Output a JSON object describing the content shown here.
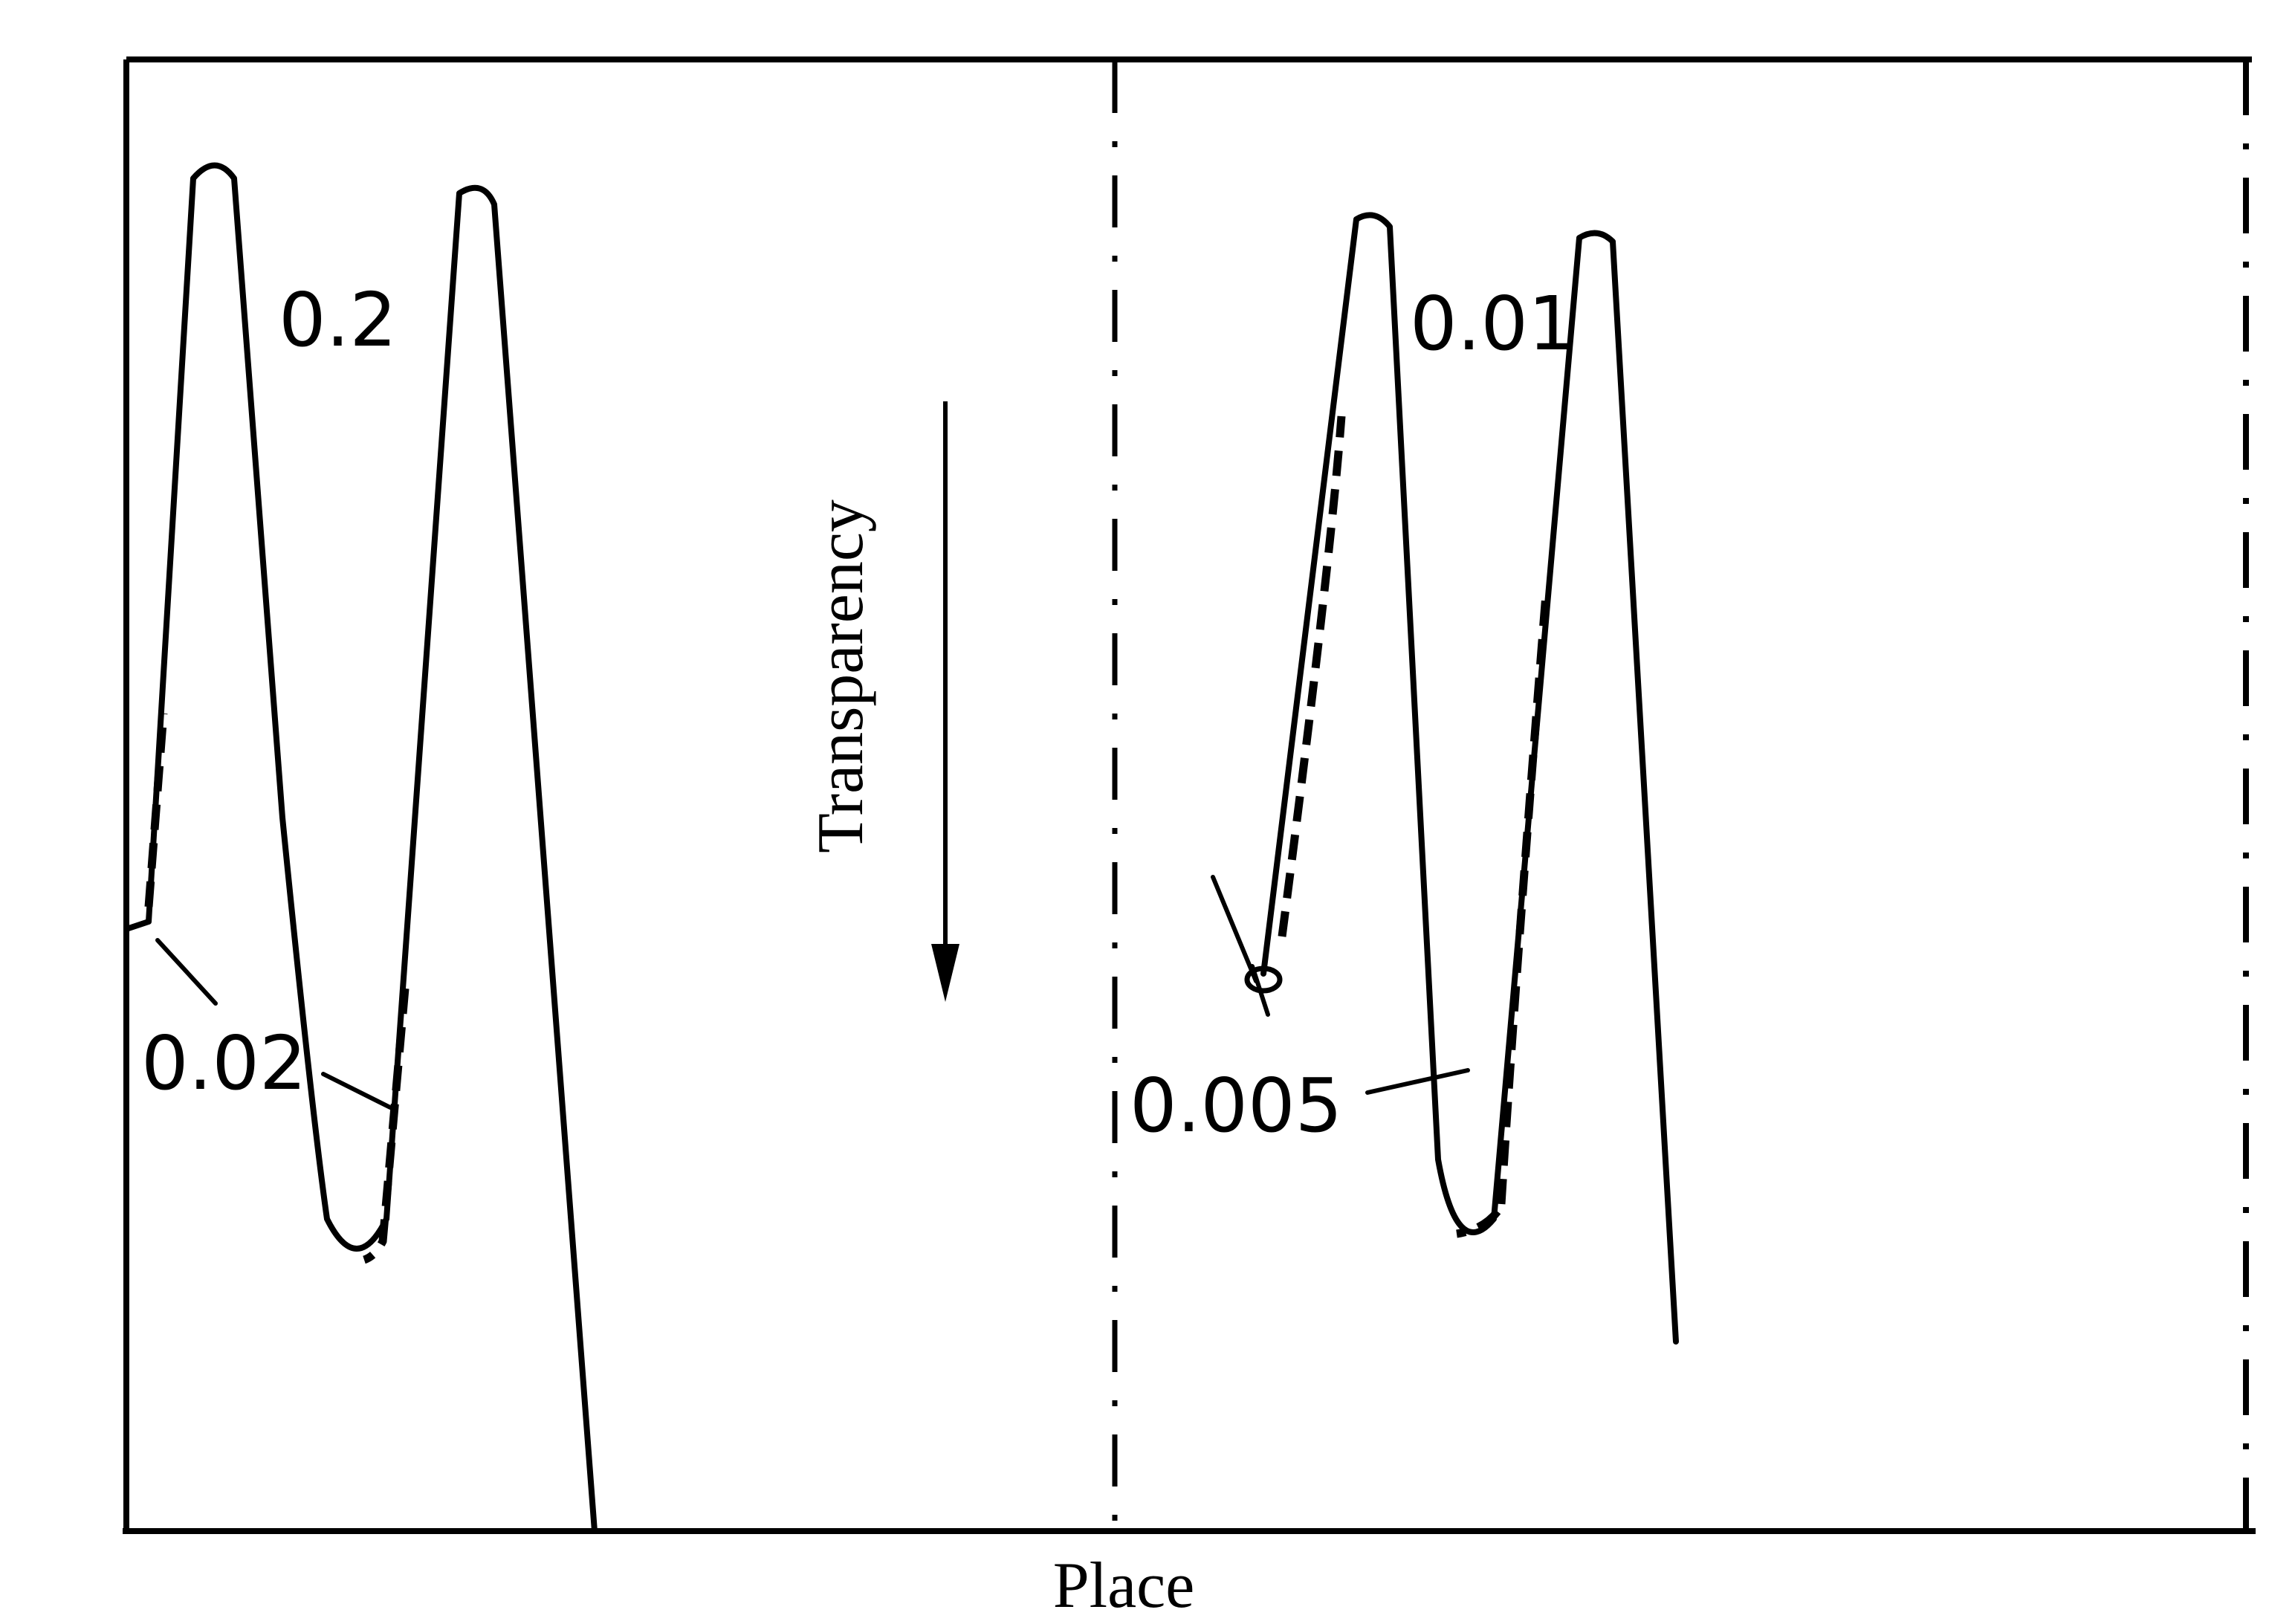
{
  "chart_data": {
    "type": "line",
    "title": "",
    "xlabel": "Place",
    "ylabel": "Transparency",
    "ylabel_arrow": "down",
    "grid": false,
    "panels": [
      {
        "name": "left",
        "series": [
          {
            "label": "0.2",
            "style": "solid"
          },
          {
            "label": "0.02",
            "style": "dashed"
          }
        ]
      },
      {
        "name": "right",
        "series": [
          {
            "label": "0.01",
            "style": "solid"
          },
          {
            "label": "0.005",
            "style": "dashed"
          }
        ]
      }
    ],
    "annotations": [
      "0.2",
      "0.02",
      "0.01",
      "0.005"
    ]
  },
  "colors": {
    "line": "#000000",
    "background": "#ffffff"
  }
}
